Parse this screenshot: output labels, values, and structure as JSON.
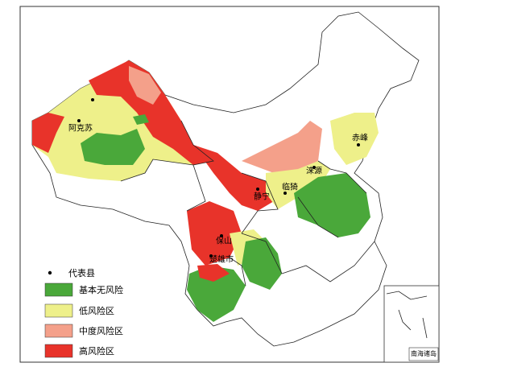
{
  "legend": {
    "items": [
      "代表县",
      "基本无风险",
      "低风险区",
      "中度风险区",
      "高风险区"
    ]
  },
  "cities": [
    "阿克苏",
    "赤峰",
    "涞源",
    "临猗",
    "静宁",
    "保山",
    "楚雄市"
  ],
  "inset": {
    "label": "南海诸岛"
  }
}
